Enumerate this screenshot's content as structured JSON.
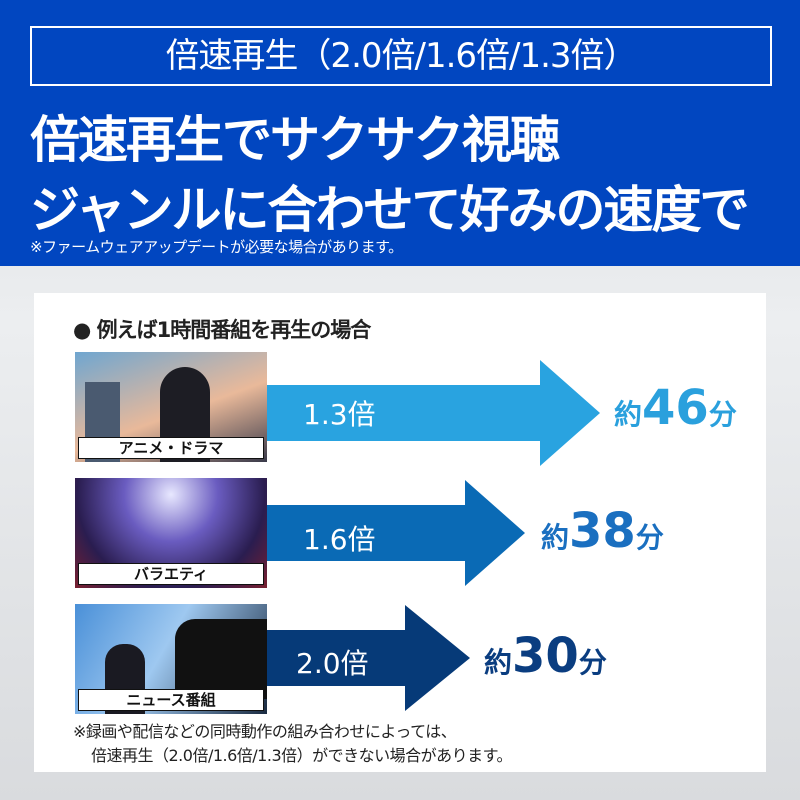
{
  "header": {
    "title_box": "倍速再生（2.0倍/1.6倍/1.3倍）",
    "headline_1": "倍速再生でサクサク視聴",
    "headline_2": "ジャンルに合わせて好みの速度で",
    "note": "※ファームウェアアップデートが必要な場合があります。",
    "bg_color": "#0146c0"
  },
  "panel": {
    "heading": "例えば1時間番組を再生の場合",
    "rows": [
      {
        "genre": "アニメ・ドラマ",
        "speed": "1.3倍",
        "prefix": "約",
        "minutes": "46",
        "unit": "分",
        "color": "#29a3e0"
      },
      {
        "genre": "バラエティ",
        "speed": "1.6倍",
        "prefix": "約",
        "minutes": "38",
        "unit": "分",
        "color": "#0a6ab5"
      },
      {
        "genre": "ニュース番組",
        "speed": "2.0倍",
        "prefix": "約",
        "minutes": "30",
        "unit": "分",
        "color": "#063a78"
      }
    ],
    "footnote_1": "※録画や配信などの同時動作の組み合わせによっては、",
    "footnote_2": "倍速再生（2.0倍/1.6倍/1.3倍）ができない場合があります。"
  }
}
